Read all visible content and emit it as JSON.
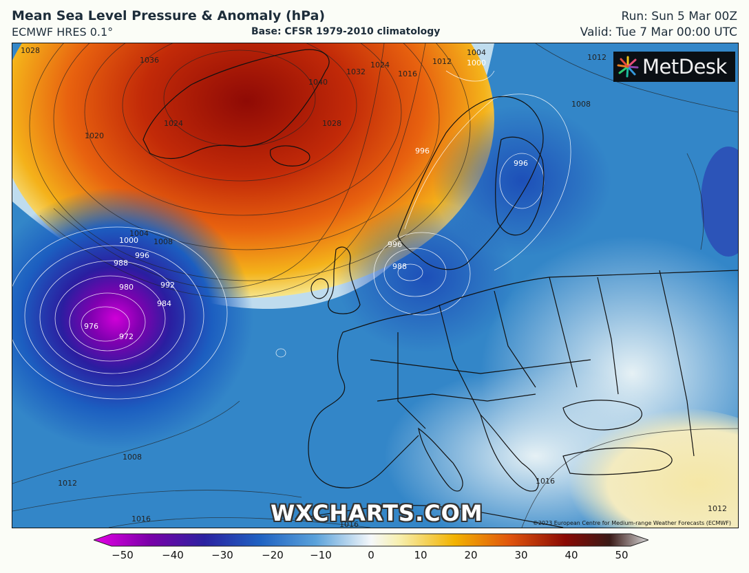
{
  "header": {
    "title": "Mean Sea Level Pressure & Anomaly (hPa)",
    "model": "ECMWF HRES 0.1°",
    "base": "Base: CFSR 1979-2010 climatology",
    "run": "Run: Sun 5 Mar 00Z",
    "valid": "Valid: Tue 7 Mar 00:00 UTC"
  },
  "logo": {
    "text": "MetDesk",
    "icon": "metdesk-star-icon"
  },
  "watermark": "WXCHARTS.COM",
  "copyright": "©2023 European Centre for Medium-range Weather Forecasts (ECMWF)",
  "isobar_labels": [
    "1028",
    "1036",
    "1024",
    "1020",
    "1040",
    "1032",
    "1028",
    "1024",
    "1016",
    "1012",
    "1004",
    "1000",
    "1012",
    "1008",
    "996",
    "996",
    "1008",
    "1004",
    "1000",
    "996",
    "988",
    "992",
    "980",
    "984",
    "976",
    "972",
    "996",
    "988",
    "1008",
    "1012",
    "1016",
    "1016",
    "1016",
    "1012"
  ],
  "colorbar": {
    "ticks": [
      "−50",
      "−40",
      "−30",
      "−20",
      "−10",
      "0",
      "10",
      "20",
      "30",
      "40",
      "50"
    ],
    "min": -50,
    "max": 50,
    "colors": [
      "#e600e6",
      "#7b00a8",
      "#2a22a0",
      "#1f62c2",
      "#5aa2da",
      "#d7ecf7",
      "#f7f0b0",
      "#f2b300",
      "#e0550c",
      "#8a0a04",
      "#3a1a16",
      "#d8d8d8"
    ]
  }
}
